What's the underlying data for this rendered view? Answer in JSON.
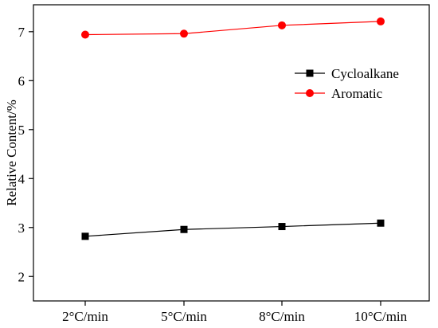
{
  "chart_data": {
    "type": "line",
    "title": "",
    "xlabel": "",
    "ylabel": "Relative Content/%",
    "categories": [
      "2°C/min",
      "5°C/min",
      "8°C/min",
      "10°C/min"
    ],
    "y_ticks": [
      "2",
      "3",
      "4",
      "5",
      "6",
      "7"
    ],
    "ylim": [
      1.5,
      7.55
    ],
    "grid": false,
    "legend": "right",
    "series": [
      {
        "name": "Cycloalkane",
        "values": [
          2.82,
          2.96,
          3.02,
          3.09
        ],
        "color": "#000000",
        "marker": "square"
      },
      {
        "name": "Aromatic",
        "values": [
          6.94,
          6.96,
          7.13,
          7.21
        ],
        "color": "#ff0000",
        "marker": "circle"
      }
    ]
  }
}
